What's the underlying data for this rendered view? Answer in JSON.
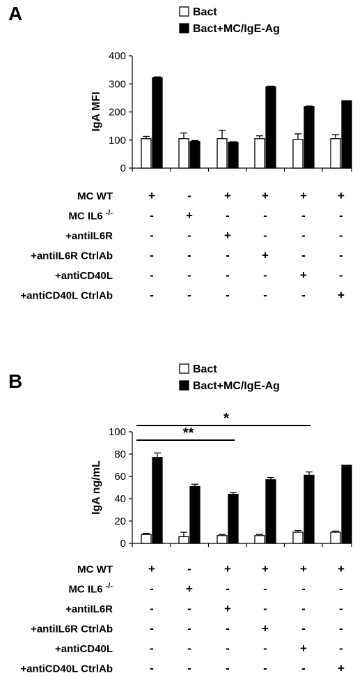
{
  "panels": [
    {
      "letter": "A",
      "legend": [
        {
          "label": "Bact",
          "fill": "#ffffff"
        },
        {
          "label": "Bact+MC/IgE-Ag",
          "fill": "#000000"
        }
      ],
      "ylabel": "IgA MFI",
      "yticks": [
        "0",
        "100",
        "200",
        "300",
        "400"
      ],
      "treatment_rows": [
        {
          "label": "MC WT",
          "sup": "",
          "marks": [
            "+",
            "-",
            "+",
            "+",
            "+",
            "+"
          ]
        },
        {
          "label": "MC IL6",
          "sup": "-/-",
          "marks": [
            "-",
            "+",
            "-",
            "-",
            "-",
            "-"
          ]
        },
        {
          "label": "+antiIL6R",
          "sup": "",
          "marks": [
            "-",
            "-",
            "+",
            "-",
            "-",
            "-"
          ]
        },
        {
          "label": "+antiIL6R CtrlAb",
          "sup": "",
          "marks": [
            "-",
            "-",
            "-",
            "+",
            "-",
            "-"
          ]
        },
        {
          "label": "+antiCD40L",
          "sup": "",
          "marks": [
            "-",
            "-",
            "-",
            "-",
            "+",
            "-"
          ]
        },
        {
          "label": "+antiCD40L CtrlAb",
          "sup": "",
          "marks": [
            "-",
            "-",
            "-",
            "-",
            "-",
            "+"
          ]
        }
      ],
      "significance": []
    },
    {
      "letter": "B",
      "legend": [
        {
          "label": "Bact",
          "fill": "#ffffff"
        },
        {
          "label": "Bact+MC/IgE-Ag",
          "fill": "#000000"
        }
      ],
      "ylabel": "IgA ng/mL",
      "yticks": [
        "0",
        "20",
        "40",
        "60",
        "80",
        "100"
      ],
      "treatment_rows": [
        {
          "label": "MC WT",
          "sup": "",
          "marks": [
            "+",
            "-",
            "+",
            "+",
            "+",
            "+"
          ]
        },
        {
          "label": "MC IL6",
          "sup": "-/-",
          "marks": [
            "-",
            "+",
            "-",
            "-",
            "-",
            "-"
          ]
        },
        {
          "label": "+antiIL6R",
          "sup": "",
          "marks": [
            "-",
            "-",
            "+",
            "-",
            "-",
            "-"
          ]
        },
        {
          "label": "+antiIL6R CtrlAb",
          "sup": "",
          "marks": [
            "-",
            "-",
            "-",
            "+",
            "-",
            "-"
          ]
        },
        {
          "label": "+antiCD40L",
          "sup": "",
          "marks": [
            "-",
            "-",
            "-",
            "-",
            "+",
            "-"
          ]
        },
        {
          "label": "+antiCD40L CtrlAb",
          "sup": "",
          "marks": [
            "-",
            "-",
            "-",
            "-",
            "-",
            "+"
          ]
        }
      ],
      "significance": [
        {
          "label": "*",
          "from_group": 1,
          "to_group": 5
        },
        {
          "label": "**",
          "from_group": 1,
          "to_group": 3
        }
      ]
    }
  ],
  "chart_data": [
    {
      "type": "bar",
      "title": "",
      "xlabel": "",
      "ylabel": "IgA MFI",
      "ylim": [
        0,
        400
      ],
      "categories": [
        "1",
        "2",
        "3",
        "4",
        "5",
        "6"
      ],
      "series": [
        {
          "name": "Bact",
          "values": [
            105,
            105,
            105,
            105,
            102,
            105
          ],
          "errors": [
            8,
            20,
            30,
            10,
            20,
            14
          ]
        },
        {
          "name": "Bact+MC/IgE-Ag",
          "values": [
            322,
            95,
            92,
            290,
            219,
            240
          ],
          "errors": [
            3,
            3,
            2,
            2,
            2,
            0
          ]
        }
      ],
      "grid": false,
      "legend_position": "top"
    },
    {
      "type": "bar",
      "title": "",
      "xlabel": "",
      "ylabel": "IgA ng/mL",
      "ylim": [
        0,
        100
      ],
      "categories": [
        "1",
        "2",
        "3",
        "4",
        "5",
        "6"
      ],
      "series": [
        {
          "name": "Bact",
          "values": [
            8,
            6,
            7,
            7,
            10,
            10
          ],
          "errors": [
            1,
            4,
            1,
            1,
            1.5,
            1
          ]
        },
        {
          "name": "Bact+MC/IgE-Ag",
          "values": [
            77,
            51,
            44,
            57,
            61,
            70
          ],
          "errors": [
            4,
            2,
            1.5,
            2,
            3,
            0
          ]
        }
      ],
      "grid": false,
      "legend_position": "top"
    }
  ]
}
